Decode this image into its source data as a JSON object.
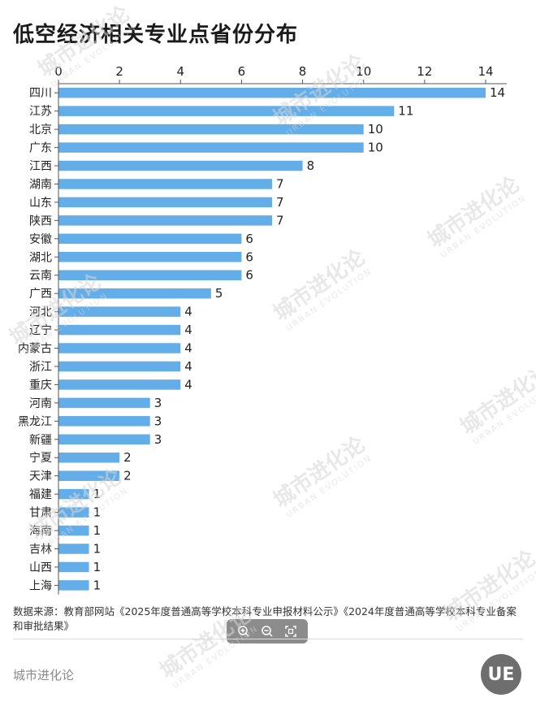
{
  "title": "低空经济相关专业点省份分布",
  "source_text": "数据来源：教育部网站《2025年度普通高等学校本科专业申报材料公示》《2024年度普通高等学校本科专业备案和审批结果》",
  "brand_name": "城市进化论",
  "logo_text": "UE",
  "watermark": {
    "main": "城市进化论",
    "sub": "URBAN EVOLUTION"
  },
  "toolbar": {
    "zoom_in_icon": "zoom-in-icon",
    "zoom_out_icon": "zoom-out-icon",
    "fit_icon": "fit-screen-icon"
  },
  "colors": {
    "bar": "#63ade8",
    "axis": "#555555",
    "text": "#222222"
  },
  "chart_data": {
    "type": "bar",
    "orientation": "horizontal",
    "title": "低空经济相关专业点省份分布",
    "xlabel": "",
    "ylabel": "",
    "xlim": [
      0,
      14
    ],
    "xticks": [
      0,
      2,
      4,
      6,
      8,
      10,
      12,
      14
    ],
    "x_axis_position": "top",
    "grid": false,
    "categories": [
      "四川",
      "江苏",
      "北京",
      "广东",
      "江西",
      "湖南",
      "山东",
      "陕西",
      "安徽",
      "湖北",
      "云南",
      "广西",
      "河北",
      "辽宁",
      "内蒙古",
      "浙江",
      "重庆",
      "河南",
      "黑龙江",
      "新疆",
      "宁夏",
      "天津",
      "福建",
      "甘肃",
      "海南",
      "吉林",
      "山西",
      "上海"
    ],
    "values": [
      14,
      11,
      10,
      10,
      8,
      7,
      7,
      7,
      6,
      6,
      6,
      5,
      4,
      4,
      4,
      4,
      4,
      3,
      3,
      3,
      2,
      2,
      1,
      1,
      1,
      1,
      1,
      1
    ]
  }
}
